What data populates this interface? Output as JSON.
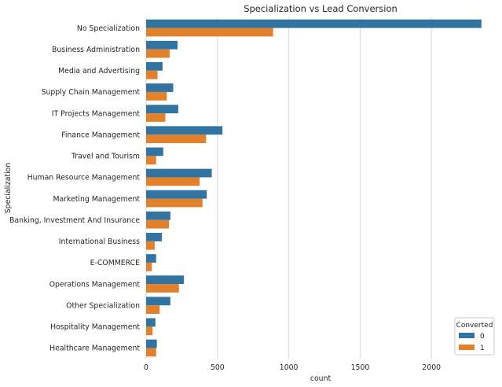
{
  "chart_data": {
    "type": "bar",
    "orientation": "horizontal",
    "title": "Specialization vs Lead Conversion",
    "xlabel": "count",
    "ylabel": "Specialization",
    "xlim": [
      0,
      2450
    ],
    "x_ticks": [
      0,
      500,
      1000,
      1500,
      2000
    ],
    "grid": "vertical",
    "legend_title": "Converted",
    "legend_position": "lower-right",
    "categories": [
      "No Specialization",
      "Business Administration",
      "Media and Advertising",
      "Supply Chain Management",
      "IT Projects Management",
      "Finance Management",
      "Travel and Tourism",
      "Human Resource Management",
      "Marketing Management",
      "Banking, Investment And Insurance",
      "International Business",
      "E-COMMERCE",
      "Operations Management",
      "Other Specialization",
      "Hospitality Management",
      "Healthcare Management"
    ],
    "series": [
      {
        "name": "0",
        "color": "#3274a1",
        "values": [
          2350,
          220,
          115,
          190,
          225,
          535,
          120,
          460,
          425,
          170,
          110,
          70,
          265,
          170,
          65,
          75
        ]
      },
      {
        "name": "1",
        "color": "#e1812c",
        "values": [
          890,
          165,
          80,
          145,
          135,
          420,
          70,
          375,
          395,
          160,
          60,
          40,
          230,
          95,
          45,
          70
        ]
      }
    ]
  }
}
